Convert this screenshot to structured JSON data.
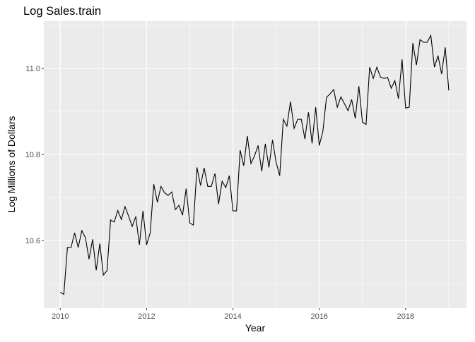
{
  "chart_data": {
    "type": "line",
    "title": "Log Sales.train",
    "xlabel": "Year",
    "ylabel": "Log Millions of Dollars",
    "xlim": [
      2009.62,
      2019.41
    ],
    "ylim": [
      10.443,
      11.11
    ],
    "x_ticks": [
      2010,
      2012,
      2014,
      2016,
      2018
    ],
    "x_tick_labels": [
      "2010",
      "2012",
      "2014",
      "2016",
      "2018"
    ],
    "y_ticks": [
      10.6,
      10.8,
      11.0
    ],
    "y_tick_labels": [
      "10.6",
      "10.8",
      "11.0"
    ],
    "grid": true,
    "start": 2010,
    "frequency": 12,
    "series": [
      {
        "name": "Sales.train",
        "color": "#000000",
        "values": [
          10.48,
          10.475,
          10.584,
          10.584,
          10.618,
          10.584,
          10.623,
          10.607,
          10.557,
          10.603,
          10.531,
          10.593,
          10.52,
          10.53,
          10.648,
          10.643,
          10.67,
          10.649,
          10.679,
          10.657,
          10.633,
          10.656,
          10.59,
          10.669,
          10.59,
          10.618,
          10.731,
          10.689,
          10.726,
          10.711,
          10.705,
          10.713,
          10.672,
          10.682,
          10.659,
          10.721,
          10.641,
          10.636,
          10.77,
          10.728,
          10.769,
          10.726,
          10.726,
          10.756,
          10.685,
          10.738,
          10.723,
          10.751,
          10.669,
          10.669,
          10.81,
          10.774,
          10.843,
          10.779,
          10.797,
          10.821,
          10.761,
          10.825,
          10.77,
          10.834,
          10.782,
          10.751,
          10.882,
          10.866,
          10.923,
          10.861,
          10.882,
          10.882,
          10.836,
          10.898,
          10.826,
          10.91,
          10.821,
          10.854,
          10.933,
          10.941,
          10.951,
          10.91,
          10.934,
          10.918,
          10.902,
          10.928,
          10.884,
          10.959,
          10.875,
          10.87,
          11.003,
          10.977,
          11.003,
          10.98,
          10.977,
          10.979,
          10.954,
          10.972,
          10.93,
          11.021,
          10.908,
          10.91,
          11.059,
          11.008,
          11.067,
          11.061,
          11.061,
          11.077,
          11.003,
          11.03,
          10.987,
          11.049,
          10.949
        ]
      }
    ]
  },
  "colors": {
    "panel": "#EBEBEB",
    "grid": "#FFFFFF",
    "tick_text": "#4D4D4D"
  }
}
